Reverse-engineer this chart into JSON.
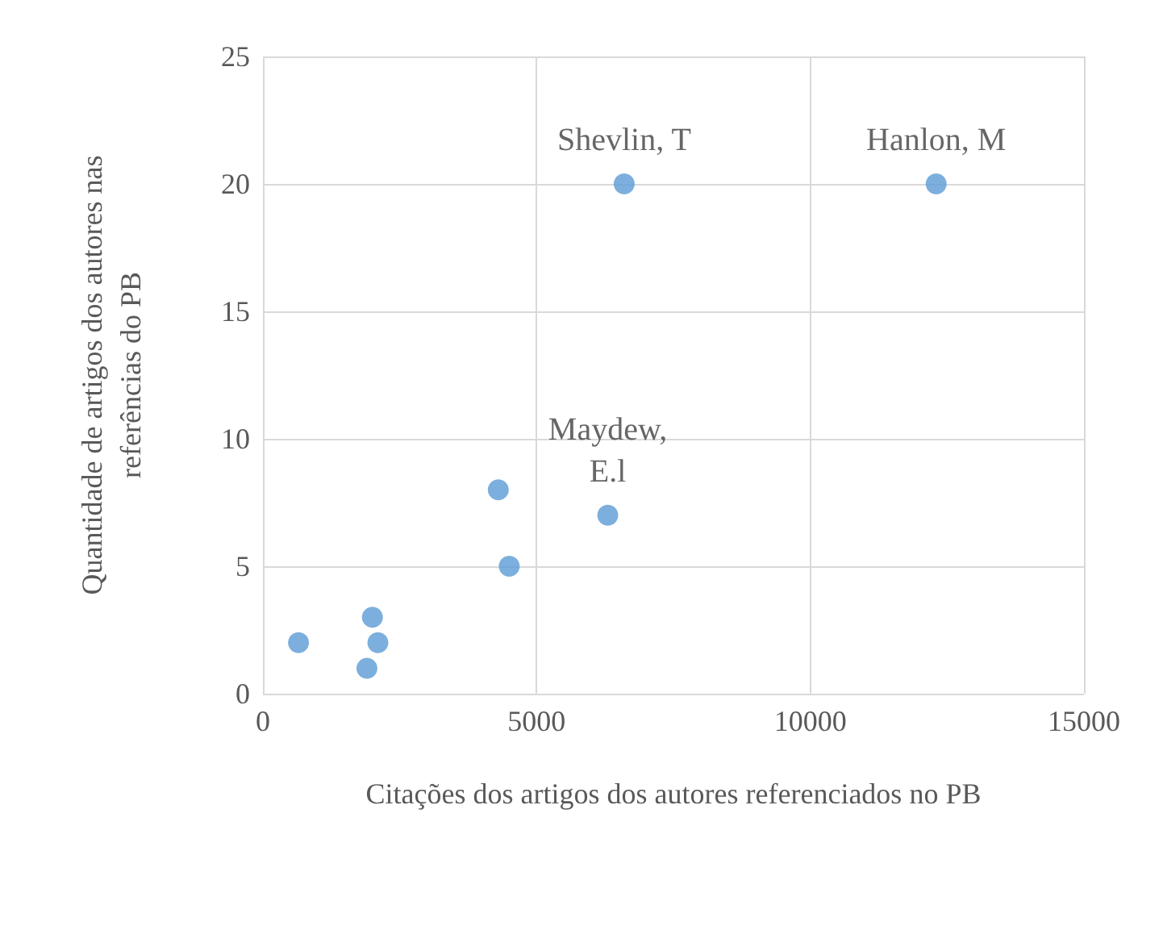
{
  "chart_data": {
    "type": "scatter",
    "xlabel": "Citações dos artigos dos autores referenciados no PB",
    "ylabel": "Quantidade de artigos dos autores nas\nreferências do PB",
    "x": [
      650,
      1900,
      2000,
      2100,
      4300,
      4500,
      6300,
      6600,
      12300
    ],
    "series": [
      {
        "color": "#5b9bd5",
        "values": [
          2,
          1,
          3,
          2,
          8,
          5,
          7,
          20,
          20
        ]
      }
    ],
    "xlim": [
      0,
      15000
    ],
    "xticks": [
      0,
      5000,
      10000,
      15000
    ],
    "ylim": [
      0,
      25
    ],
    "yticks": [
      0,
      5,
      10,
      15,
      20,
      25
    ],
    "grid": true,
    "marker": "circle",
    "annotations": [
      {
        "text": "Shevlin, T",
        "x": 6600,
        "y": 20
      },
      {
        "text": "Hanlon, M",
        "x": 12300,
        "y": 20
      },
      {
        "text": "Maydew,\nE.l",
        "x": 6300,
        "y": 7
      }
    ]
  }
}
